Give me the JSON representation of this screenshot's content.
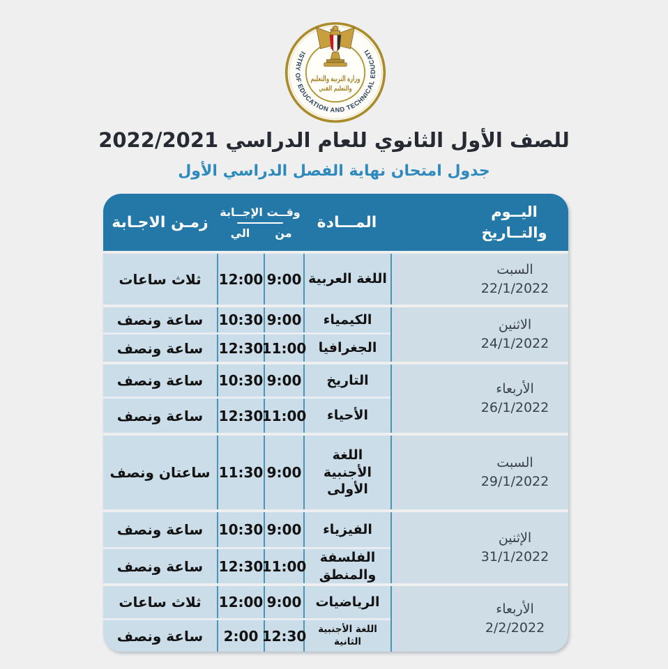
{
  "page": {
    "background": "#efeff0"
  },
  "logo": {
    "ring_text": "MINISTRY OF EDUCATION AND TECHNICAL EDUCATION",
    "arabic_line1": "وزارة التربية والتعليم",
    "arabic_line2": "والتعليم الفني",
    "colors": {
      "gold": "#b3932c",
      "navy": "#27405e",
      "flag_red": "#ce1126"
    }
  },
  "titles": {
    "line1": "للصف الأول الثانوي للعام الدراسي 2022/2021",
    "line2": "جدول امتحان نهاية الفصل الدراسي الأول",
    "line1_color": "#262b33",
    "line2_color": "#2e8abd"
  },
  "table": {
    "colors": {
      "header_bg": "#2478a8",
      "cell_bg": "#cbdde8",
      "day_cell_bg": "#cfdde6",
      "border": "#4d93b4"
    },
    "header": {
      "day_line1": "اليــوم",
      "day_line2": "والتــاريخ",
      "subject": "المـــادة",
      "time": "وقــت الإجــابة",
      "from": "من",
      "to": "الي",
      "duration": "زمـن الاجـابة"
    },
    "groups": [
      {
        "day": "السبت",
        "date": "22/1/2022",
        "rows": [
          {
            "subject": "اللغة العربية",
            "from": "9:00",
            "to": "12:00",
            "duration": "ثلاث ساعات"
          }
        ]
      },
      {
        "day": "الاثنين",
        "date": "24/1/2022",
        "rows": [
          {
            "subject": "الكيمياء",
            "from": "9:00",
            "to": "10:30",
            "duration": "ساعة ونصف"
          },
          {
            "subject": "الجغرافيا",
            "from": "11:00",
            "to": "12:30",
            "duration": "ساعة ونصف"
          }
        ]
      },
      {
        "day": "الأربعاء",
        "date": "26/1/2022",
        "rows": [
          {
            "subject": "التاريخ",
            "from": "9:00",
            "to": "10:30",
            "duration": "ساعة ونصف"
          },
          {
            "subject": "الأحياء",
            "from": "11:00",
            "to": "12:30",
            "duration": "ساعة ونصف"
          }
        ]
      },
      {
        "day": "السبت",
        "date": "29/1/2022",
        "rows": [
          {
            "subject": "اللغة الأجنبية الأولى",
            "from": "9:00",
            "to": "11:30",
            "duration": "ساعتان ونصف"
          }
        ]
      },
      {
        "day": "الإثنين",
        "date": "31/1/2022",
        "rows": [
          {
            "subject": "الفيزياء",
            "from": "9:00",
            "to": "10:30",
            "duration": "ساعة ونصف"
          },
          {
            "subject": "الفلسفة والمنطق",
            "from": "11:00",
            "to": "12:30",
            "duration": "ساعة ونصف"
          }
        ]
      },
      {
        "day": "الأربعاء",
        "date": "2/2/2022",
        "rows": [
          {
            "subject": "الرياضيات",
            "from": "9:00",
            "to": "12:00",
            "duration": "ثلاث ساعات"
          },
          {
            "subject": "اللغة الأجنبية الثانية",
            "compact": true,
            "from": "12:30",
            "to": "2:00",
            "duration": "ساعة ونصف"
          }
        ]
      }
    ]
  }
}
